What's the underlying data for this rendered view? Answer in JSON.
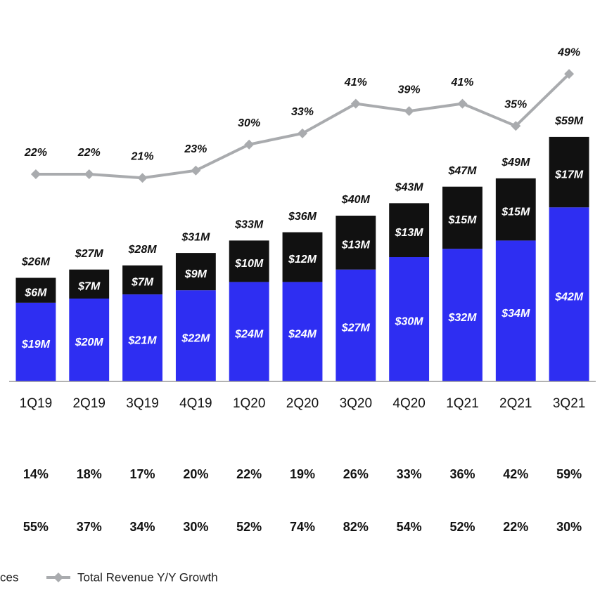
{
  "chart_data": {
    "type": "bar",
    "categories": [
      "1Q19",
      "2Q19",
      "3Q19",
      "4Q19",
      "1Q20",
      "2Q20",
      "3Q20",
      "4Q20",
      "1Q21",
      "2Q21",
      "3Q21"
    ],
    "ylim": [
      0,
      70
    ],
    "series": [
      {
        "color": "#2e2ef2",
        "values": [
          19,
          20,
          21,
          22,
          24,
          24,
          27,
          30,
          32,
          34,
          42
        ],
        "value_labels": [
          "$19M",
          "$20M",
          "$21M",
          "$22M",
          "$24M",
          "$24M",
          "$27M",
          "$30M",
          "$32M",
          "$34M",
          "$42M"
        ]
      },
      {
        "color": "#111111",
        "values": [
          6,
          7,
          7,
          9,
          10,
          12,
          13,
          13,
          15,
          15,
          17
        ],
        "value_labels": [
          "$6M",
          "$7M",
          "$7M",
          "$9M",
          "$10M",
          "$12M",
          "$13M",
          "$13M",
          "$15M",
          "$15M",
          "$17M"
        ]
      },
      {
        "name": "Total Revenue Y/Y Growth",
        "type": "line",
        "axis": "y2",
        "color": "#a9abae",
        "values": [
          22,
          22,
          21,
          23,
          30,
          33,
          41,
          39,
          41,
          35,
          49
        ],
        "value_labels": [
          "22%",
          "22%",
          "21%",
          "23%",
          "30%",
          "33%",
          "41%",
          "39%",
          "41%",
          "35%",
          "49%"
        ]
      }
    ],
    "y2lim": [
      15,
      50
    ],
    "totals": [
      26,
      27,
      28,
      31,
      33,
      36,
      40,
      43,
      47,
      49,
      59
    ],
    "total_labels": [
      "$26M",
      "$27M",
      "$28M",
      "$31M",
      "$33M",
      "$36M",
      "$40M",
      "$43M",
      "$47M",
      "$49M",
      "$59M"
    ],
    "rows": [
      {
        "values": [
          14,
          18,
          17,
          20,
          22,
          19,
          26,
          33,
          36,
          42,
          59
        ],
        "value_labels": [
          "14%",
          "18%",
          "17%",
          "20%",
          "22%",
          "19%",
          "26%",
          "33%",
          "36%",
          "42%",
          "59%"
        ]
      },
      {
        "values": [
          55,
          37,
          34,
          30,
          52,
          74,
          82,
          54,
          52,
          22,
          30
        ],
        "value_labels": [
          "55%",
          "37%",
          "34%",
          "30%",
          "52%",
          "74%",
          "82%",
          "54%",
          "52%",
          "22%",
          "30%"
        ]
      }
    ],
    "legend_fragment": "ces"
  }
}
